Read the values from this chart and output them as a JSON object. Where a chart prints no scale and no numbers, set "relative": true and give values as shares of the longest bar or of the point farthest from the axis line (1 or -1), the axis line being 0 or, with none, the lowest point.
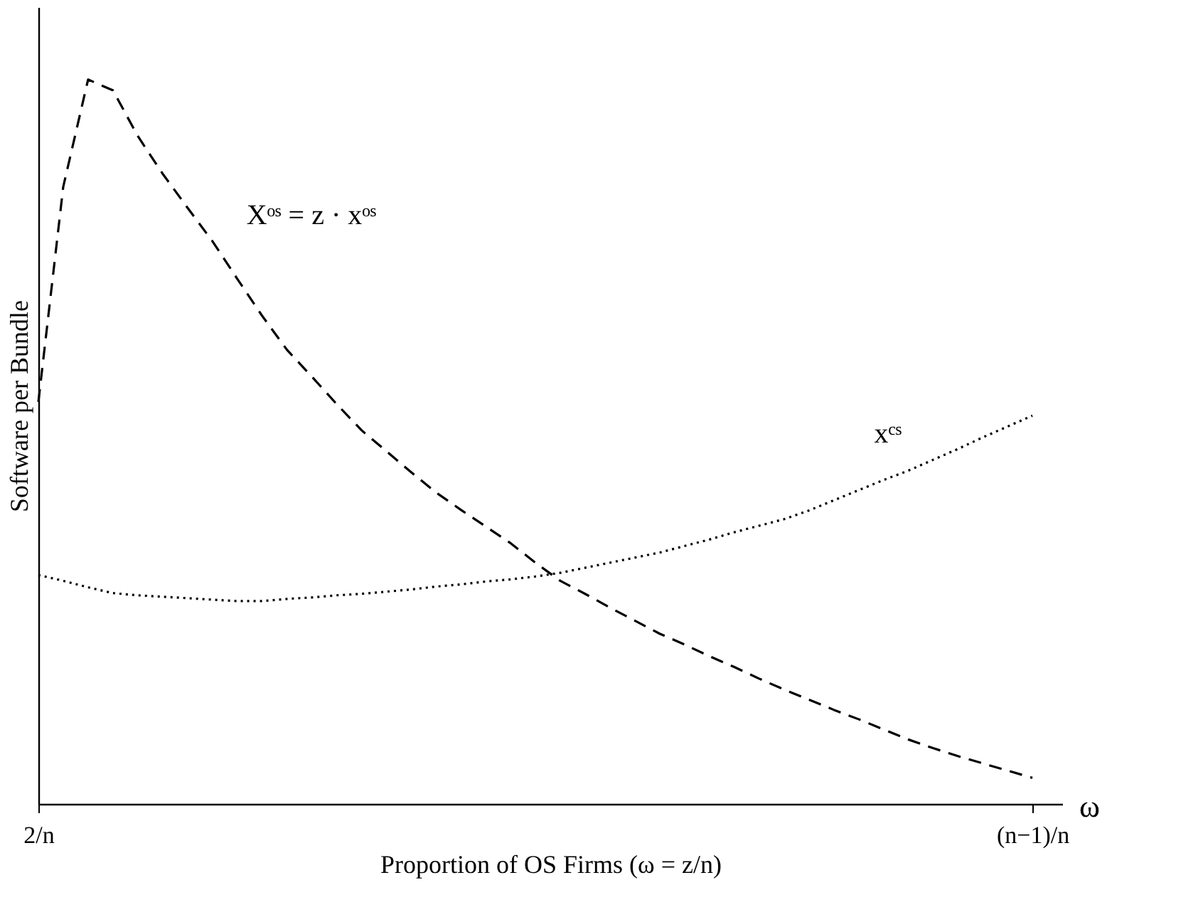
{
  "chart_data": {
    "type": "line",
    "relative": true,
    "xlabel": "Proportion of OS Firms (ω = z/n)",
    "ylabel": "Software per Bundle",
    "grid": false,
    "marker": "none",
    "categories": [
      "2/n",
      null,
      null,
      null,
      null,
      null,
      null,
      null,
      null,
      null,
      null,
      null,
      null,
      null,
      null,
      null,
      null,
      null,
      null,
      null,
      null,
      null,
      null,
      null,
      null,
      null,
      null,
      null,
      null,
      null,
      null,
      null,
      null,
      null,
      null,
      null,
      null,
      null,
      null,
      null,
      "(n−1)/n"
    ],
    "series": [
      {
        "name": "Xᵒˢ = z · xᵒˢ",
        "color": "#000000",
        "line_style": "dashed",
        "values": [
          0.555,
          0.852,
          1.0,
          0.985,
          0.922,
          0.87,
          0.823,
          0.777,
          0.725,
          0.674,
          0.627,
          0.59,
          0.552,
          0.516,
          0.487,
          0.458,
          0.43,
          0.406,
          0.383,
          0.36,
          0.333,
          0.308,
          0.29,
          0.271,
          0.253,
          0.235,
          0.22,
          0.204,
          0.189,
          0.173,
          0.158,
          0.144,
          0.13,
          0.117,
          0.103,
          0.089,
          0.077,
          0.066,
          0.056,
          0.046,
          0.036
        ]
      },
      {
        "name": "xᶜˢ",
        "color": "#000000",
        "line_style": "dotted",
        "values": [
          0.316,
          0.308,
          0.299,
          0.291,
          0.288,
          0.286,
          0.284,
          0.282,
          0.28,
          0.28,
          0.283,
          0.285,
          0.288,
          0.29,
          0.293,
          0.296,
          0.3,
          0.303,
          0.307,
          0.31,
          0.314,
          0.319,
          0.326,
          0.333,
          0.34,
          0.347,
          0.356,
          0.365,
          0.375,
          0.384,
          0.393,
          0.405,
          0.419,
          0.433,
          0.447,
          0.46,
          0.475,
          0.49,
          0.506,
          0.521,
          0.536
        ]
      }
    ],
    "annotations": [
      "ω"
    ]
  }
}
